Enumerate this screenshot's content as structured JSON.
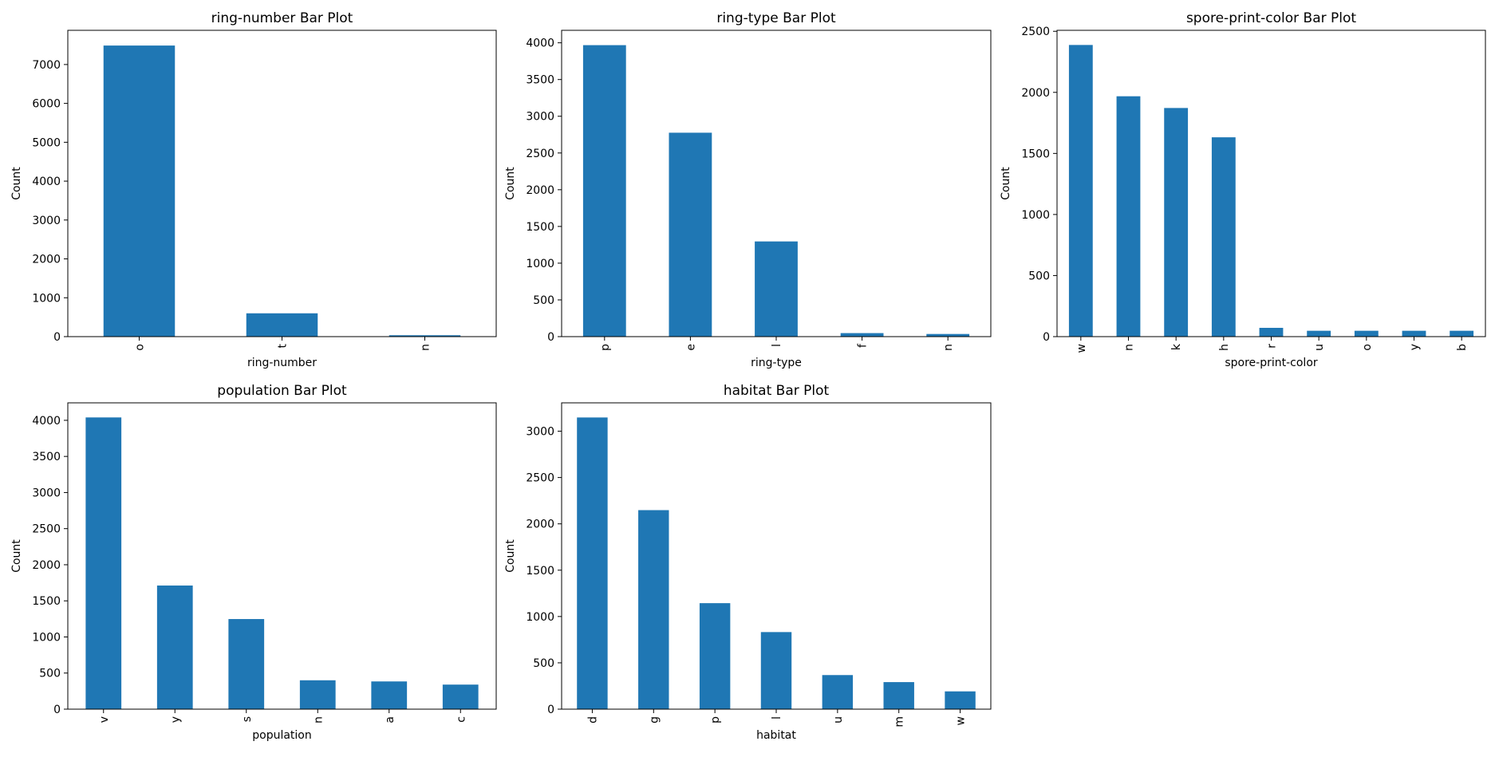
{
  "chart_data": [
    {
      "type": "bar",
      "title": "ring-number Bar Plot",
      "xlabel": "ring-number",
      "ylabel": "Count",
      "categories": [
        "o",
        "t",
        "n"
      ],
      "values": [
        7488,
        600,
        36
      ],
      "ylim": [
        0,
        7880
      ],
      "yticks": [
        0,
        1000,
        2000,
        3000,
        4000,
        5000,
        6000,
        7000
      ],
      "bar_color": "#1f77b4",
      "grid": false,
      "legend": "none"
    },
    {
      "type": "bar",
      "title": "ring-type Bar Plot",
      "xlabel": "ring-type",
      "ylabel": "Count",
      "categories": [
        "p",
        "e",
        "l",
        "f",
        "n"
      ],
      "values": [
        3968,
        2776,
        1296,
        48,
        36
      ],
      "ylim": [
        0,
        4170
      ],
      "yticks": [
        0,
        500,
        1000,
        1500,
        2000,
        2500,
        3000,
        3500,
        4000
      ],
      "bar_color": "#1f77b4",
      "grid": false,
      "legend": "none"
    },
    {
      "type": "bar",
      "title": "spore-print-color Bar Plot",
      "xlabel": "spore-print-color",
      "ylabel": "Count",
      "categories": [
        "w",
        "n",
        "k",
        "h",
        "r",
        "u",
        "o",
        "y",
        "b"
      ],
      "values": [
        2388,
        1968,
        1872,
        1632,
        72,
        48,
        48,
        48,
        48
      ],
      "ylim": [
        0,
        2508
      ],
      "yticks": [
        0,
        500,
        1000,
        1500,
        2000,
        2500
      ],
      "bar_color": "#1f77b4",
      "grid": false,
      "legend": "none"
    },
    {
      "type": "bar",
      "title": "population Bar Plot",
      "xlabel": "population",
      "ylabel": "Count",
      "categories": [
        "v",
        "y",
        "s",
        "n",
        "a",
        "c"
      ],
      "values": [
        4040,
        1712,
        1248,
        400,
        384,
        340
      ],
      "ylim": [
        0,
        4242
      ],
      "yticks": [
        0,
        500,
        1000,
        1500,
        2000,
        2500,
        3000,
        3500,
        4000
      ],
      "bar_color": "#1f77b4",
      "grid": false,
      "legend": "none"
    },
    {
      "type": "bar",
      "title": "habitat Bar Plot",
      "xlabel": "habitat",
      "ylabel": "Count",
      "categories": [
        "d",
        "g",
        "p",
        "l",
        "u",
        "m",
        "w"
      ],
      "values": [
        3148,
        2148,
        1144,
        832,
        368,
        292,
        192
      ],
      "ylim": [
        0,
        3306
      ],
      "yticks": [
        0,
        500,
        1000,
        1500,
        2000,
        2500,
        3000
      ],
      "bar_color": "#1f77b4",
      "grid": false,
      "legend": "none"
    }
  ]
}
